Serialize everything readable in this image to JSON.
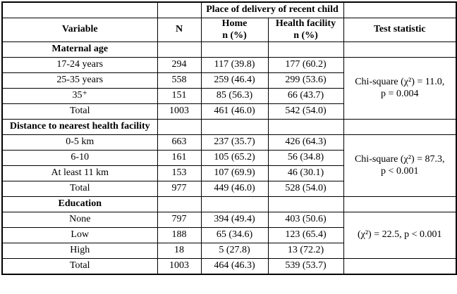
{
  "table": {
    "top_header": {
      "place_of_delivery": "Place of delivery of recent child"
    },
    "columns": {
      "variable": "Variable",
      "n": "N",
      "home_line1": "Home",
      "home_line2": "n (%)",
      "facility_line1": "Health facility",
      "facility_line2": "n (%)",
      "test": "Test statistic"
    },
    "sections": [
      {
        "title": "Maternal age",
        "rows": [
          {
            "label": "17-24 years",
            "n": "294",
            "home": "117 (39.8)",
            "facility": "177 (60.2)"
          },
          {
            "label": "25-35 years",
            "n": "558",
            "home": "259 (46.4)",
            "facility": "299 (53.6)"
          },
          {
            "label": "35⁺",
            "n": "151",
            "home": "85 (56.3)",
            "facility": "66 (43.7)"
          },
          {
            "label": "Total",
            "n": "1003",
            "home": "461 (46.0)",
            "facility": "542 (54.0)"
          }
        ],
        "test_line1": "Chi-square (χ²) = 11.0,",
        "test_line2": "p = 0.004"
      },
      {
        "title": "Distance to nearest health facility",
        "rows": [
          {
            "label": "0-5 km",
            "n": "663",
            "home": "237 (35.7)",
            "facility": "426 (64.3)"
          },
          {
            "label": "6-10",
            "n": "161",
            "home": "105 (65.2)",
            "facility": "56 (34.8)"
          },
          {
            "label": "At least 11 km",
            "n": "153",
            "home": "107 (69.9)",
            "facility": "46 (30.1)"
          },
          {
            "label": "Total",
            "n": "977",
            "home": "449 (46.0)",
            "facility": "528 (54.0)"
          }
        ],
        "test_line1": "Chi-square (χ²) = 87.3,",
        "test_line2": "p < 0.001"
      },
      {
        "title": "Education",
        "rows": [
          {
            "label": "None",
            "n": "797",
            "home": "394 (49.4)",
            "facility": "403 (50.6)"
          },
          {
            "label": "Low",
            "n": "188",
            "home": "65 (34.6)",
            "facility": "123 (65.4)"
          },
          {
            "label": "High",
            "n": "18",
            "home": "5 (27.8)",
            "facility": "13 (72.2)"
          },
          {
            "label": "Total",
            "n": "1003",
            "home": "464 (46.3)",
            "facility": "539 (53.7)"
          }
        ],
        "test_line1": "(χ²) = 22.5, p < 0.001",
        "test_line2": ""
      }
    ]
  }
}
